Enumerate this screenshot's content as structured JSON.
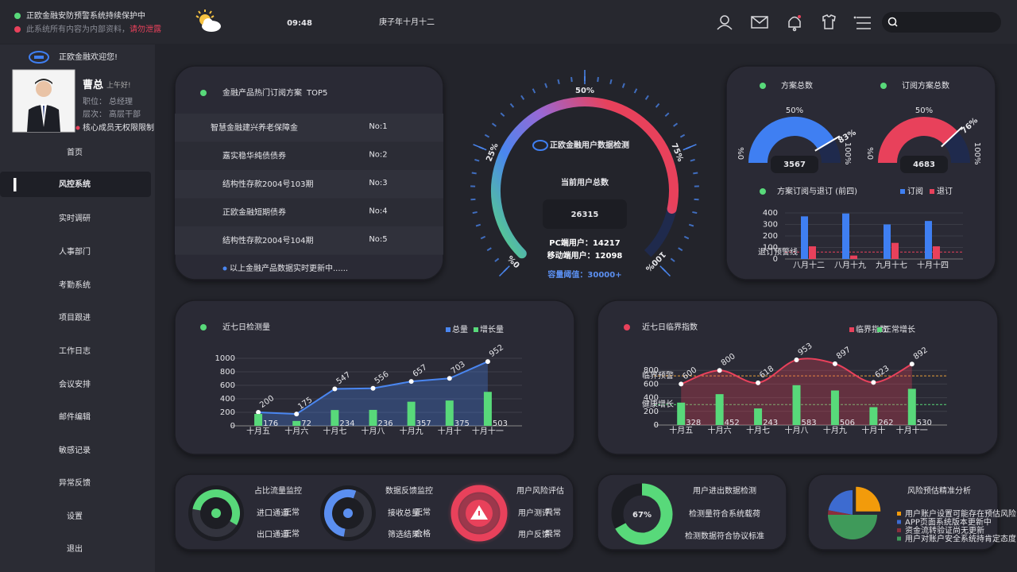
{
  "header": {
    "status": "正欧金融安防预警系统持续保护中",
    "notice": "此系统所有内容为内部资料，",
    "warning": "请勿泄露",
    "time": "09:48",
    "date": "庚子年十月十二"
  },
  "sidebar": {
    "welcome": "正欧金融欢迎您!",
    "name": "曹总",
    "greeting": "上午好!",
    "fields": [
      [
        "职位：",
        "总经理"
      ],
      [
        "层次：",
        "高层干部"
      ]
    ],
    "badge": "核心成员无权限限制",
    "menu": [
      "首页",
      "风控系统",
      "实时调研",
      "人事部门",
      "考勤系统",
      "项目跟进",
      "工作日志",
      "会议安排",
      "邮件编辑",
      "敏感记录",
      "异常反馈",
      "设置",
      "退出"
    ],
    "active": 1
  },
  "top5": {
    "title": "金融产品热门订阅方案",
    "tag": "TOP5",
    "rows": [
      [
        "智慧金融建兴养老保障金",
        "No:1"
      ],
      [
        "嘉实稳华纯债债券",
        "No:2"
      ],
      [
        "结构性存款2004号103期",
        "No:3"
      ],
      [
        "正欧金融短期债券",
        "No:4"
      ],
      [
        "结构性存款2004号104期",
        "No:5"
      ]
    ],
    "footer": "以上金融产品数据实时更新中......"
  },
  "gauge": {
    "brand": "正欧金融用户数据检测",
    "ticks": [
      {
        "value": 0,
        "label": "0%"
      },
      {
        "value": 25,
        "label": "25%"
      },
      {
        "value": 50,
        "label": "50%"
      },
      {
        "value": 75,
        "label": "75%"
      },
      {
        "value": 100,
        "label": "100%"
      }
    ],
    "label": "当前用户总数",
    "total": 26315,
    "users": [
      [
        "PC端用户：",
        14217
      ],
      [
        "移动端用户：",
        12098
      ]
    ],
    "capacity_label": "容量阈值：",
    "capacity": {
      "value": 30000,
      "label": "30000+"
    }
  },
  "chart_data": [
    {
      "type": "gauge",
      "title": "方案总数",
      "values": [
        83
      ],
      "value_labels": [
        "83%"
      ],
      "total": 3567,
      "color": "#3f7ff2",
      "ticks": [
        {
          "value": 0,
          "label": "0%"
        },
        {
          "value": 50,
          "label": "50%"
        },
        {
          "value": 100,
          "label": "100%"
        }
      ]
    },
    {
      "type": "gauge",
      "title": "订阅方案总数",
      "values": [
        76
      ],
      "value_labels": [
        "76%"
      ],
      "total": 4683,
      "color": "#e8415b",
      "ticks": [
        {
          "value": 0,
          "label": "0%"
        },
        {
          "value": 50,
          "label": "50%"
        },
        {
          "value": 100,
          "label": "100%"
        }
      ]
    },
    {
      "type": "bar",
      "title": "方案订阅与退订 (前四)",
      "categories": [
        "八月十二",
        "八月十九",
        "九月十七",
        "十月十四"
      ],
      "series": [
        {
          "name": "订阅",
          "color": "#3f7ff2",
          "values": [
            370,
            395,
            300,
            330
          ]
        },
        {
          "name": "退订",
          "color": "#e8415b",
          "values": [
            110,
            30,
            140,
            110
          ]
        }
      ],
      "ylim": [
        0,
        400
      ],
      "yticks": [
        0,
        100,
        200,
        300,
        400
      ],
      "references": [
        {
          "label": "退订预警线",
          "value": 60,
          "color": "#e8415b"
        }
      ]
    },
    {
      "type": "combo",
      "title": "近七日检测量",
      "categories": [
        "十月五",
        "十月六",
        "十月七",
        "十月八",
        "十月九",
        "十月十",
        "十月十一"
      ],
      "series": [
        {
          "name": "总量",
          "kind": "line",
          "color": "#4a86f0",
          "values": [
            200,
            175,
            547,
            556,
            657,
            703,
            952
          ]
        },
        {
          "name": "增长量",
          "kind": "bar",
          "color": "#58d97a",
          "values": [
            176,
            72,
            234,
            236,
            357,
            375,
            503
          ]
        }
      ],
      "ylim": [
        0,
        1000
      ],
      "yticks": [
        0,
        200,
        400,
        600,
        800,
        1000
      ],
      "smooth": false,
      "references": []
    },
    {
      "type": "combo",
      "title": "近七日临界指数",
      "categories": [
        "十月五",
        "十月六",
        "十月七",
        "十月八",
        "十月九",
        "十月十",
        "十月十一"
      ],
      "series": [
        {
          "name": "临界指数",
          "kind": "line",
          "color": "#e8415b",
          "values": [
            600,
            800,
            618,
            953,
            897,
            623,
            892
          ]
        },
        {
          "name": "正常增长",
          "kind": "bar",
          "color": "#58d97a",
          "values": [
            328,
            452,
            243,
            583,
            506,
            262,
            530
          ]
        }
      ],
      "ylim": [
        0,
        1000
      ],
      "yticks": [
        0,
        200,
        400,
        600,
        800
      ],
      "smooth": true,
      "references": [
        {
          "label": "临界预警",
          "value": 720,
          "color": "#e8a13a"
        },
        {
          "label": "健康增长",
          "value": 300,
          "color": "#58d97a"
        }
      ]
    },
    {
      "type": "donut",
      "title": "用户进出数据检测",
      "values": [
        67
      ],
      "value_labels": [
        "67%"
      ],
      "color": "#58d97a",
      "notes": [
        "检测量符合系统载荷",
        "检测数据符合协议标准"
      ]
    },
    {
      "type": "pie",
      "title": "风险预估精准分析",
      "categories": [
        "用户账户设置可能存在预估风险",
        "APP页面系统版本更新中",
        "资金流转验证尚无更新",
        "用户对账户安全系统持肯定态度"
      ],
      "values": [
        25,
        22,
        3,
        50
      ],
      "colors": [
        "#f29b0b",
        "#3d6bd0",
        "#8a2f3c",
        "#3f9a5a"
      ]
    }
  ],
  "monitors": [
    {
      "title": "占比流量监控",
      "color": "#58d97a",
      "rows": [
        [
          "进口通道：",
          "正常"
        ],
        [
          "出口通道：",
          "正常"
        ]
      ]
    },
    {
      "title": "数据反馈监控",
      "color": "#5b8ff0",
      "rows": [
        [
          "接收总量：",
          "正常"
        ],
        [
          "筛选结果：",
          "合格"
        ]
      ]
    },
    {
      "title": "用户风险评估",
      "color": "#e8415b",
      "rows": [
        [
          "用户测评：",
          "异常"
        ],
        [
          "用户反馈：",
          "异常"
        ]
      ]
    }
  ]
}
